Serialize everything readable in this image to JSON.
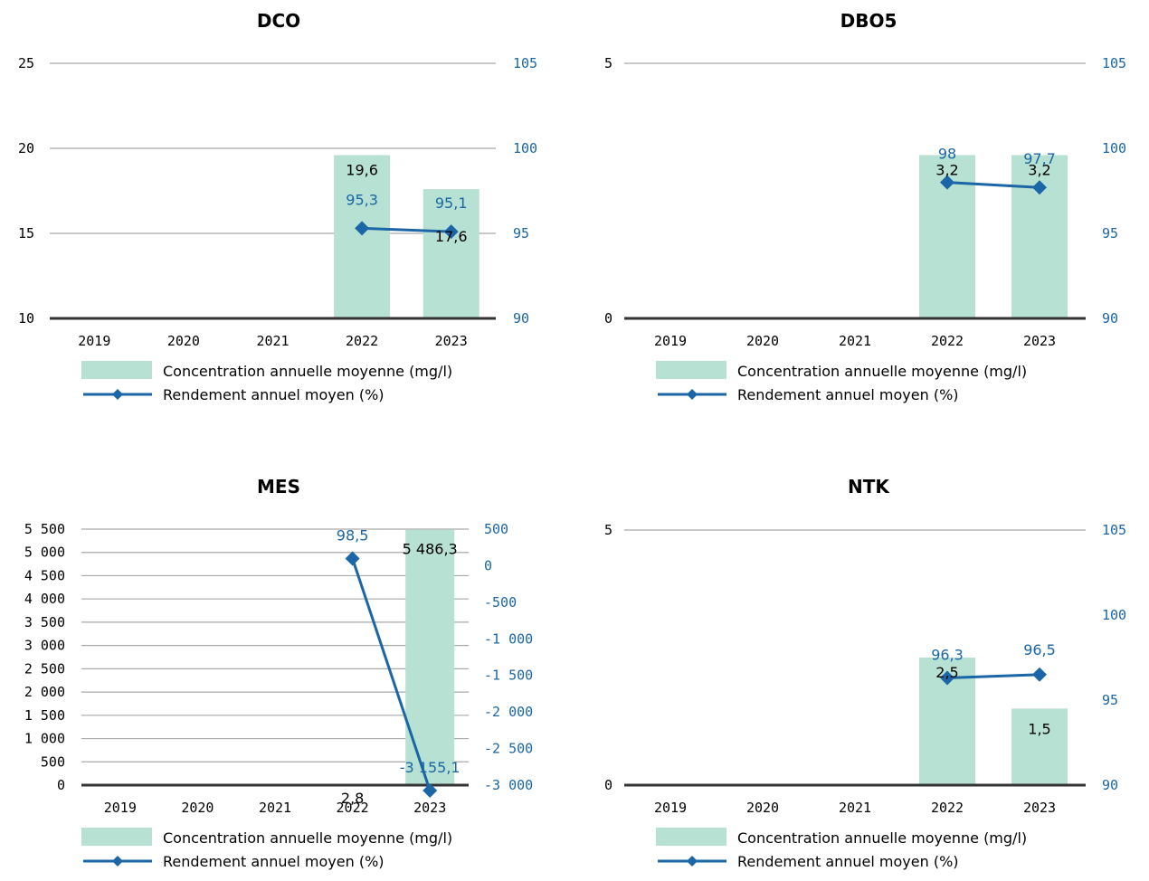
{
  "colors": {
    "bar": "#b7e1d2",
    "line": "#1a66a6",
    "grid": "#a9a9a9",
    "axis": "#333333"
  },
  "legend": {
    "bar_label": "Concentration annuelle moyenne (mg/l)",
    "line_label": "Rendement annuel moyen (%)"
  },
  "chart_data": [
    {
      "type": "bar+line",
      "title": "DCO",
      "categories": [
        "2019",
        "2020",
        "2021",
        "2022",
        "2023"
      ],
      "left_axis": {
        "min": 10,
        "max": 25,
        "ticks": [
          10,
          15,
          20,
          25
        ],
        "tick_labels": [
          "10",
          "15",
          "20",
          "25"
        ]
      },
      "right_axis": {
        "min": 90,
        "max": 105,
        "ticks": [
          90,
          95,
          100,
          105
        ],
        "tick_labels": [
          "90",
          "95",
          "100",
          "105"
        ]
      },
      "bars": {
        "values": [
          null,
          null,
          null,
          19.6,
          17.6
        ],
        "labels": [
          "",
          "",
          "",
          "19,6",
          "17,6"
        ]
      },
      "line": {
        "values": [
          null,
          null,
          null,
          95.3,
          95.1
        ],
        "labels": [
          "",
          "",
          "",
          "95,3",
          "95,1"
        ]
      },
      "grid": true,
      "legend_position": "bottom"
    },
    {
      "type": "bar+line",
      "title": "DBO5",
      "categories": [
        "2019",
        "2020",
        "2021",
        "2022",
        "2023"
      ],
      "left_axis": {
        "min": 0,
        "max": 5,
        "ticks": [
          0,
          5
        ],
        "tick_labels": [
          "0",
          "5"
        ]
      },
      "right_axis": {
        "min": 90,
        "max": 105,
        "ticks": [
          90,
          95,
          100,
          105
        ],
        "tick_labels": [
          "90",
          "95",
          "100",
          "105"
        ]
      },
      "bars": {
        "values": [
          null,
          null,
          null,
          3.2,
          3.2
        ],
        "labels": [
          "",
          "",
          "",
          "3,2",
          "3,2"
        ]
      },
      "line": {
        "values": [
          null,
          null,
          null,
          98,
          97.7
        ],
        "labels": [
          "",
          "",
          "",
          "98",
          "97,7"
        ]
      },
      "grid": true,
      "legend_position": "bottom"
    },
    {
      "type": "bar+line",
      "title": "MES",
      "categories": [
        "2019",
        "2020",
        "2021",
        "2022",
        "2023"
      ],
      "left_axis": {
        "min": 0,
        "max": 5500,
        "ticks": [
          0,
          500,
          1000,
          1500,
          2000,
          2500,
          3000,
          3500,
          4000,
          4500,
          5000,
          5500
        ],
        "tick_labels": [
          "0",
          "500",
          "1 000",
          "1 500",
          "2 000",
          "2 500",
          "3 000",
          "3 500",
          "4 000",
          "4 500",
          "5 000",
          "5 500"
        ]
      },
      "right_axis": {
        "min": -3000,
        "max": 500,
        "ticks": [
          -3000,
          -2500,
          -2000,
          -1500,
          -1000,
          -500,
          0,
          500
        ],
        "tick_labels": [
          "-3 000",
          "-2 500",
          "-2 000",
          "-1 500",
          "-1 000",
          "-500",
          "0",
          "500"
        ]
      },
      "bars": {
        "values": [
          null,
          null,
          null,
          2.8,
          5486.3
        ],
        "labels": [
          "",
          "",
          "",
          "2,8",
          "5 486,3"
        ]
      },
      "line": {
        "values": [
          null,
          null,
          null,
          98.5,
          -3155.1
        ],
        "labels": [
          "",
          "",
          "",
          "98,5",
          "-3 155,1"
        ]
      },
      "grid": true,
      "legend_position": "bottom"
    },
    {
      "type": "bar+line",
      "title": "NTK",
      "categories": [
        "2019",
        "2020",
        "2021",
        "2022",
        "2023"
      ],
      "left_axis": {
        "min": 0,
        "max": 5,
        "ticks": [
          0,
          5
        ],
        "tick_labels": [
          "0",
          "5"
        ]
      },
      "right_axis": {
        "min": 90,
        "max": 105,
        "ticks": [
          90,
          95,
          100,
          105
        ],
        "tick_labels": [
          "90",
          "95",
          "100",
          "105"
        ]
      },
      "bars": {
        "values": [
          null,
          null,
          null,
          2.5,
          1.5
        ],
        "labels": [
          "",
          "",
          "",
          "2,5",
          "1,5"
        ]
      },
      "line": {
        "values": [
          null,
          null,
          null,
          96.3,
          96.5
        ],
        "labels": [
          "",
          "",
          "",
          "96,3",
          "96,5"
        ]
      },
      "grid": true,
      "legend_position": "bottom"
    }
  ]
}
